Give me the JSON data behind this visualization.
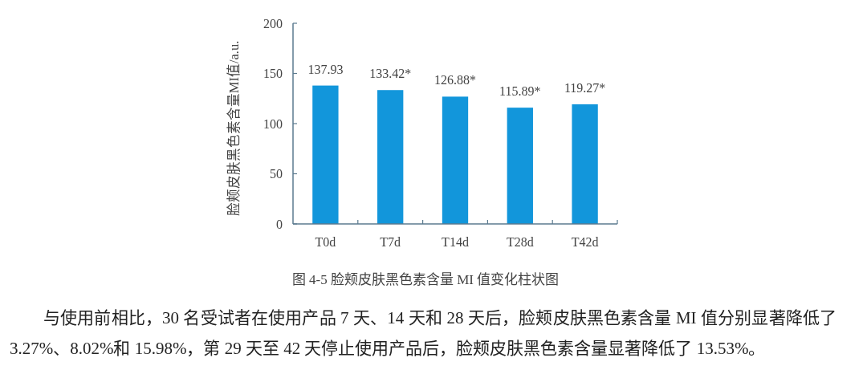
{
  "chart_data": {
    "type": "bar",
    "title": "图 4-5 脸颊皮肤黑色素含量 MI 值变化柱状图",
    "ylabel": "脸颊皮肤黑色素含量MI值/a.u.",
    "categories": [
      "T0d",
      "T7d",
      "T14d",
      "T28d",
      "T42d"
    ],
    "values": [
      137.93,
      133.42,
      126.88,
      115.89,
      119.27
    ],
    "value_labels": [
      "137.93",
      "133.42*",
      "126.88*",
      "115.89*",
      "119.27*"
    ],
    "color": "#1296db",
    "ylim": [
      0,
      200
    ],
    "yticks": [
      0,
      50,
      100,
      150,
      200
    ],
    "annotations": [
      "与使用前相比，30 名受试者在使用产品 7 天、14 天和 28 天后，脸颊皮肤黑色素含量 MI 值分别显著降低了 3.27%、8.02%和 15.98%，第 29 天至 42 天停止使用产品后，脸颊皮肤黑色素含量显著降低了 13.53%。"
    ]
  }
}
